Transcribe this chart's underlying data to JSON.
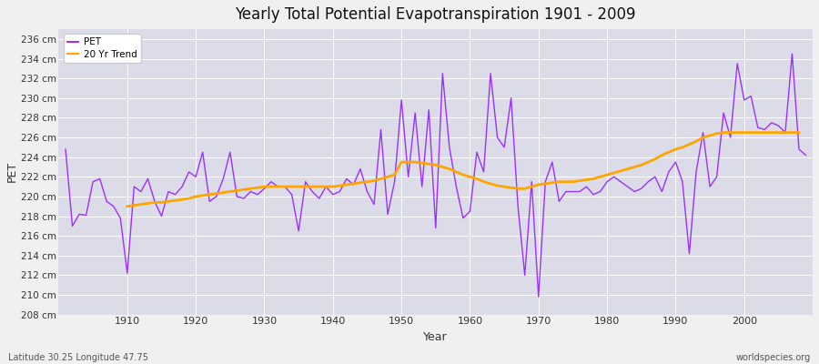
{
  "title": "Yearly Total Potential Evapotranspiration 1901 - 2009",
  "xlabel": "Year",
  "ylabel": "PET",
  "bottom_left": "Latitude 30.25 Longitude 47.75",
  "bottom_right": "worldspecies.org",
  "pet_color": "#9B30FF",
  "trend_color": "#FFA500",
  "fig_facecolor": "#F0F0F0",
  "plot_bg_color": "#DCDCE8",
  "ylim": [
    208,
    237
  ],
  "yticks": [
    208,
    210,
    212,
    214,
    216,
    218,
    220,
    222,
    224,
    226,
    228,
    230,
    232,
    234,
    236
  ],
  "xticks": [
    1910,
    1920,
    1930,
    1940,
    1950,
    1960,
    1970,
    1980,
    1990,
    2000
  ],
  "years": [
    1901,
    1902,
    1903,
    1904,
    1905,
    1906,
    1907,
    1908,
    1909,
    1910,
    1911,
    1912,
    1913,
    1914,
    1915,
    1916,
    1917,
    1918,
    1919,
    1920,
    1921,
    1922,
    1923,
    1924,
    1925,
    1926,
    1927,
    1928,
    1929,
    1930,
    1931,
    1932,
    1933,
    1934,
    1935,
    1936,
    1937,
    1938,
    1939,
    1940,
    1941,
    1942,
    1943,
    1944,
    1945,
    1946,
    1947,
    1948,
    1949,
    1950,
    1951,
    1952,
    1953,
    1954,
    1955,
    1956,
    1957,
    1958,
    1959,
    1960,
    1961,
    1962,
    1963,
    1964,
    1965,
    1966,
    1967,
    1968,
    1969,
    1970,
    1971,
    1972,
    1973,
    1974,
    1975,
    1976,
    1977,
    1978,
    1979,
    1980,
    1981,
    1982,
    1983,
    1984,
    1985,
    1986,
    1987,
    1988,
    1989,
    1990,
    1991,
    1992,
    1993,
    1994,
    1995,
    1996,
    1997,
    1998,
    1999,
    2000,
    2001,
    2002,
    2003,
    2004,
    2005,
    2006,
    2007,
    2008,
    2009
  ],
  "pet_values": [
    224.8,
    217.0,
    218.2,
    218.1,
    221.5,
    221.8,
    219.5,
    219.0,
    217.8,
    212.2,
    221.0,
    220.5,
    221.8,
    219.5,
    218.0,
    220.5,
    220.2,
    221.0,
    222.5,
    222.0,
    224.5,
    219.5,
    220.0,
    221.8,
    224.5,
    220.0,
    219.8,
    220.5,
    220.2,
    220.8,
    221.5,
    221.0,
    221.0,
    220.2,
    216.5,
    221.5,
    220.5,
    219.8,
    221.0,
    220.2,
    220.5,
    221.8,
    221.2,
    222.8,
    220.5,
    219.2,
    226.8,
    218.2,
    221.5,
    229.8,
    222.0,
    228.5,
    221.0,
    228.8,
    216.8,
    232.5,
    225.0,
    221.0,
    217.8,
    218.5,
    224.5,
    222.5,
    232.5,
    226.0,
    225.0,
    230.0,
    219.0,
    212.0,
    221.5,
    209.8,
    221.5,
    223.5,
    219.5,
    220.5,
    220.5,
    220.5,
    221.0,
    220.2,
    220.5,
    221.5,
    222.0,
    221.5,
    221.0,
    220.5,
    220.8,
    221.5,
    222.0,
    220.5,
    222.5,
    223.5,
    221.5,
    214.2,
    222.5,
    226.5,
    221.0,
    222.0,
    228.5,
    226.0,
    233.5,
    229.8,
    230.2,
    227.0,
    226.8,
    227.5,
    227.2,
    226.5,
    234.5,
    224.8,
    224.2
  ],
  "trend_values": [
    null,
    null,
    null,
    null,
    null,
    null,
    null,
    null,
    null,
    219.0,
    219.1,
    219.2,
    219.3,
    219.4,
    219.4,
    219.5,
    219.6,
    219.7,
    219.8,
    220.0,
    220.1,
    220.2,
    220.3,
    220.4,
    220.5,
    220.6,
    220.7,
    220.8,
    220.9,
    221.0,
    221.0,
    221.0,
    221.0,
    221.0,
    221.0,
    221.0,
    221.0,
    221.0,
    221.0,
    221.0,
    221.1,
    221.2,
    221.3,
    221.4,
    221.5,
    221.6,
    221.8,
    222.0,
    222.2,
    223.5,
    223.5,
    223.5,
    223.4,
    223.3,
    223.2,
    223.0,
    222.8,
    222.5,
    222.2,
    222.0,
    221.8,
    221.5,
    221.3,
    221.1,
    221.0,
    220.9,
    220.8,
    220.8,
    221.0,
    221.2,
    221.3,
    221.4,
    221.5,
    221.5,
    221.5,
    221.6,
    221.7,
    221.8,
    222.0,
    222.2,
    222.4,
    222.6,
    222.8,
    223.0,
    223.2,
    223.5,
    223.8,
    224.2,
    224.5,
    224.8,
    225.0,
    225.3,
    225.6,
    226.0,
    226.2,
    226.4,
    226.5,
    226.5,
    226.5,
    226.5,
    226.5,
    226.5,
    226.5,
    226.5,
    226.5,
    226.5,
    226.5,
    226.5
  ]
}
